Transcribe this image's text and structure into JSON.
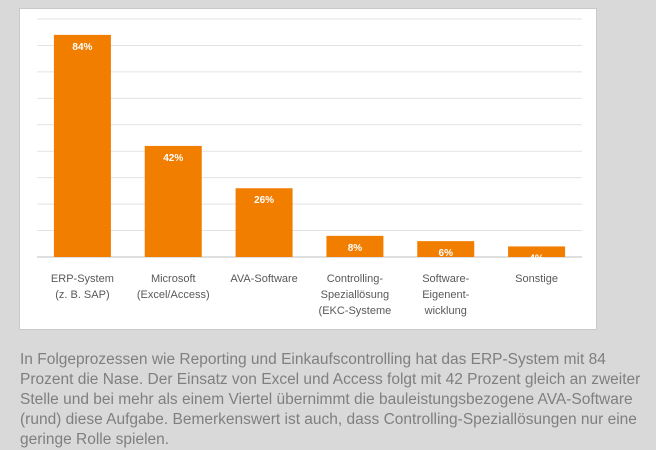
{
  "chart_data": {
    "type": "bar",
    "categories": [
      [
        "ERP-System",
        "(z. B. SAP)"
      ],
      [
        "Microsoft",
        "(Excel/Access)"
      ],
      [
        "AVA-Software"
      ],
      [
        "Controlling-",
        "Speziallösung",
        "(EKC-Systeme"
      ],
      [
        "Software-",
        "Eigenent-",
        "wicklung"
      ],
      [
        "Sonstige"
      ]
    ],
    "values": [
      84,
      42,
      26,
      8,
      6,
      4
    ],
    "data_labels": [
      "84%",
      "42%",
      "26%",
      "8%",
      "6%",
      "4%"
    ],
    "ylim": [
      0,
      90
    ],
    "grid": true,
    "bar_color": "#f27e00",
    "title": "",
    "xlabel": "",
    "ylabel": ""
  },
  "caption": "In Folgeprozessen wie Reporting und Einkaufscontrolling hat das ERP-System mit 84 Prozent die Nase. Der Einsatz von Excel und Access folgt mit 42 Prozent gleich an zweiter Stelle und bei mehr als einem Viertel übernimmt die bauleistungsbezogene AVA-Software (rund) diese Aufgabe. Bemerkenswert ist auch, dass Controlling-Speziallösungen nur eine geringe Rolle spielen."
}
